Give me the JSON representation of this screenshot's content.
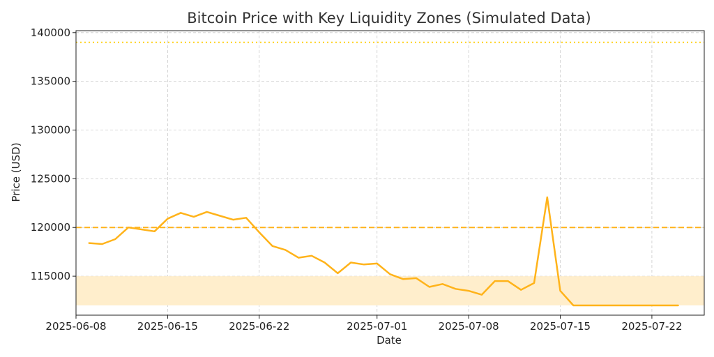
{
  "chart_data": {
    "type": "line",
    "title": "Bitcoin Price with Key Liquidity Zones (Simulated Data)",
    "xlabel": "Date",
    "ylabel": "Price (USD)",
    "xlim": [
      "2025-06-08",
      "2025-07-26"
    ],
    "ylim": [
      111000,
      140200
    ],
    "x_ticks": [
      "2025-06-08",
      "2025-06-15",
      "2025-06-22",
      "2025-07-01",
      "2025-07-08",
      "2025-07-15",
      "2025-07-22"
    ],
    "y_ticks": [
      115000,
      120000,
      125000,
      130000,
      135000,
      140000
    ],
    "grid": true,
    "colors": {
      "line": "#ffb31a",
      "zone_fill": "#ffeecc",
      "resistance": "#ffb31a",
      "target": "#ffd11a"
    },
    "zones": [
      {
        "type": "band",
        "from": 112000,
        "to": 115000
      },
      {
        "type": "hline",
        "value": 120000,
        "style": "dashed"
      },
      {
        "type": "hline",
        "value": 139000,
        "style": "dotted"
      }
    ],
    "series": [
      {
        "x": [
          "2025-06-09",
          "2025-06-10",
          "2025-06-11",
          "2025-06-12",
          "2025-06-13",
          "2025-06-14",
          "2025-06-15",
          "2025-06-16",
          "2025-06-17",
          "2025-06-18",
          "2025-06-19",
          "2025-06-20",
          "2025-06-21",
          "2025-06-22",
          "2025-06-23",
          "2025-06-24",
          "2025-06-25",
          "2025-06-26",
          "2025-06-27",
          "2025-06-28",
          "2025-06-29",
          "2025-06-30",
          "2025-07-01",
          "2025-07-02",
          "2025-07-03",
          "2025-07-04",
          "2025-07-05",
          "2025-07-06",
          "2025-07-07",
          "2025-07-08",
          "2025-07-09",
          "2025-07-10",
          "2025-07-11",
          "2025-07-12",
          "2025-07-13",
          "2025-07-14",
          "2025-07-15",
          "2025-07-16",
          "2025-07-17",
          "2025-07-18",
          "2025-07-19",
          "2025-07-20",
          "2025-07-21",
          "2025-07-22",
          "2025-07-23",
          "2025-07-24"
        ],
        "values": [
          118400,
          118300,
          118800,
          120000,
          119800,
          119600,
          120900,
          121500,
          121100,
          121600,
          121200,
          120800,
          121000,
          119500,
          118100,
          117700,
          116900,
          117100,
          116400,
          115300,
          116400,
          116200,
          116300,
          115200,
          114700,
          114800,
          113900,
          114200,
          113700,
          113500,
          113100,
          114500,
          114500,
          113600,
          114300,
          123100,
          113500,
          112000,
          112000,
          112000,
          112000,
          112000,
          112000,
          112000,
          112000,
          112000
        ]
      }
    ]
  }
}
